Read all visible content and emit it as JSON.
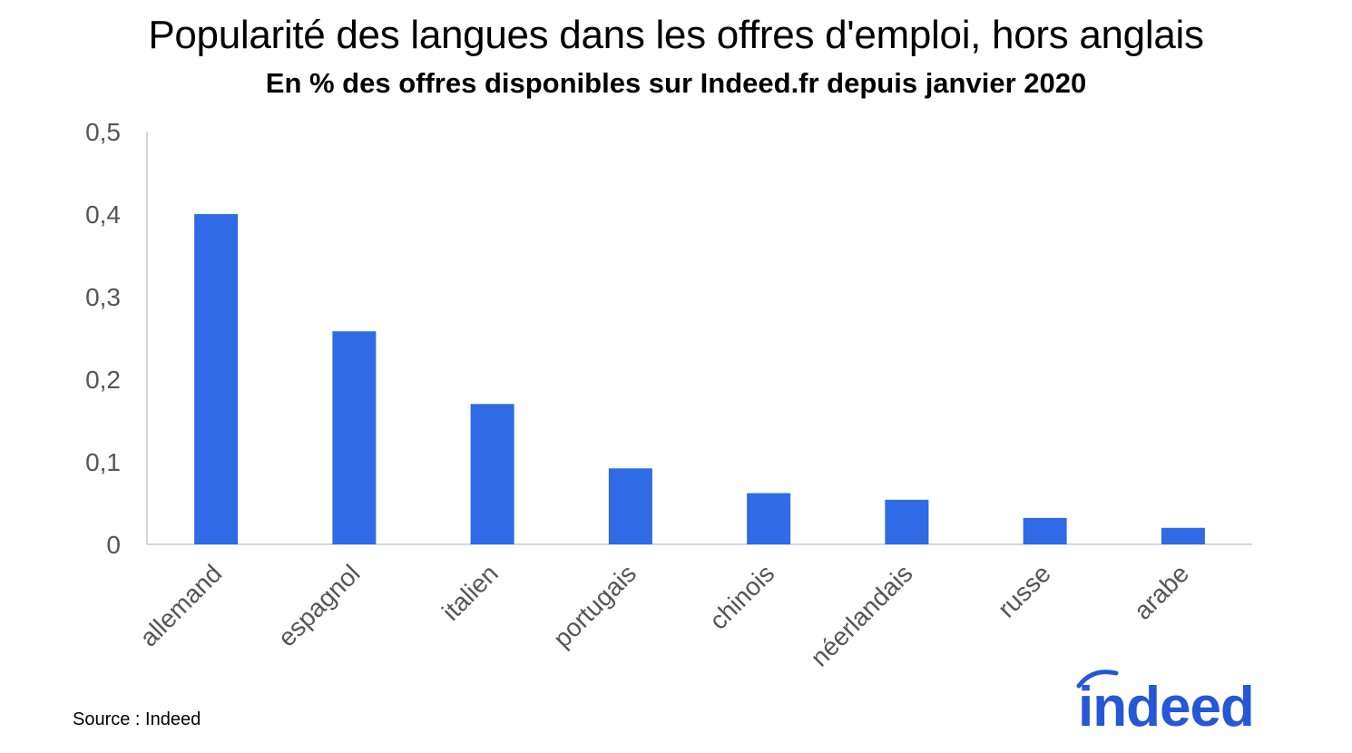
{
  "chart_data": {
    "type": "bar",
    "title": "Popularité des langues dans les offres d'emploi, hors anglais",
    "subtitle": "En % des offres disponibles sur Indeed.fr depuis janvier 2020",
    "categories": [
      "allemand",
      "espagnol",
      "italien",
      "portugais",
      "chinois",
      "néerlandais",
      "russe",
      "arabe"
    ],
    "values": [
      0.4,
      0.258,
      0.17,
      0.092,
      0.062,
      0.054,
      0.032,
      0.02
    ],
    "ylim": [
      0,
      0.5
    ],
    "yticks": [
      "0",
      "0,1",
      "0,2",
      "0,3",
      "0,4",
      "0,5"
    ],
    "yticks_values": [
      0,
      0.1,
      0.2,
      0.3,
      0.4,
      0.5
    ],
    "xlabel": "",
    "ylabel": "",
    "grid": false,
    "legend": "none",
    "bar_color": "#2f6ae7",
    "axis_color": "#c8c8c8",
    "tick_label_color": "#555555"
  },
  "footer": {
    "source": "Source : Indeed"
  },
  "logo": {
    "text": "indeed",
    "color": "#2557d6",
    "icon": "indeed-arc-logo"
  }
}
